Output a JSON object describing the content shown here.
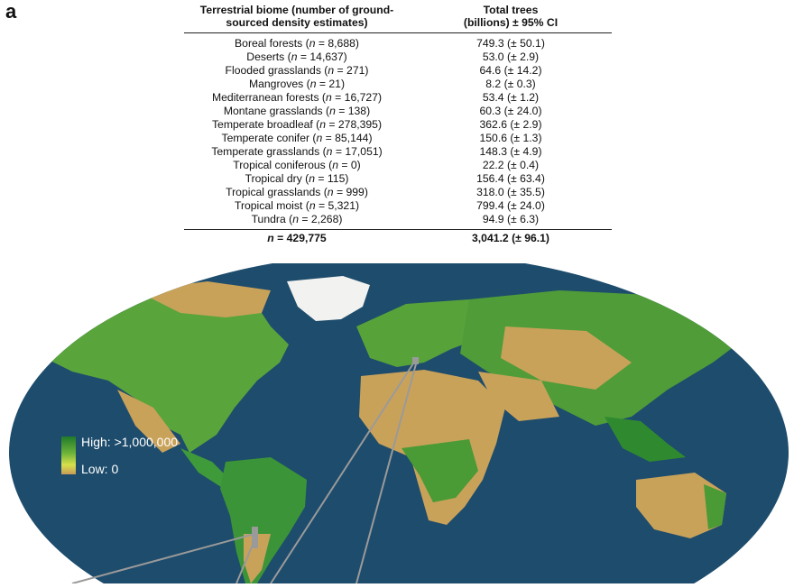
{
  "panel_label": "a",
  "table": {
    "header_col1": [
      "Terrestrial biome (number of ground-",
      "sourced density estimates)"
    ],
    "header_col2": [
      "Total trees",
      "(billions) ± 95% CI"
    ],
    "rows": [
      {
        "name": "Boreal forests",
        "n": "8,688",
        "trees": "749.3",
        "ci": "(± 50.1)"
      },
      {
        "name": "Deserts",
        "n": "14,637",
        "trees": "53.0",
        "ci": "(± 2.9)"
      },
      {
        "name": "Flooded grasslands",
        "n": "271",
        "trees": "64.6",
        "ci": "(± 14.2)"
      },
      {
        "name": "Mangroves",
        "n": "21",
        "trees": "8.2",
        "ci": "(± 0.3)"
      },
      {
        "name": "Mediterranean forests",
        "n": "16,727",
        "trees": "53.4",
        "ci": "(± 1.2)"
      },
      {
        "name": "Montane grasslands",
        "n": "138",
        "trees": "60.3",
        "ci": "(± 24.0)"
      },
      {
        "name": "Temperate broadleaf",
        "n": "278,395",
        "trees": "362.6",
        "ci": "(± 2.9)"
      },
      {
        "name": "Temperate conifer",
        "n": "85,144",
        "trees": "150.6",
        "ci": "(± 1.3)"
      },
      {
        "name": "Temperate grasslands",
        "n": "17,051",
        "trees": "148.3",
        "ci": "(± 4.9)"
      },
      {
        "name": "Tropical coniferous",
        "n": "0",
        "trees": "22.2",
        "ci": "(± 0.4)"
      },
      {
        "name": "Tropical dry",
        "n": "115",
        "trees": "156.4",
        "ci": "(± 63.4)"
      },
      {
        "name": "Tropical grasslands",
        "n": "999",
        "trees": "318.0",
        "ci": "(± 35.5)"
      },
      {
        "name": "Tropical moist",
        "n": "5,321",
        "trees": "799.4",
        "ci": "(± 24.0)"
      },
      {
        "name": "Tundra",
        "n": "2,268",
        "trees": "94.9",
        "ci": "(± 6.3)"
      }
    ],
    "total_n": "429,775",
    "total_trees": "3,041.2 (± 96.1)",
    "n_symbol": "n",
    "eq": " = "
  },
  "map_legend": {
    "high": "High: >1,000,000",
    "low": "Low: 0",
    "colors": {
      "high": "#2f8a2f",
      "mid": "#cfe04a",
      "low": "#c9a25a",
      "ocean": "#1d4868"
    }
  }
}
